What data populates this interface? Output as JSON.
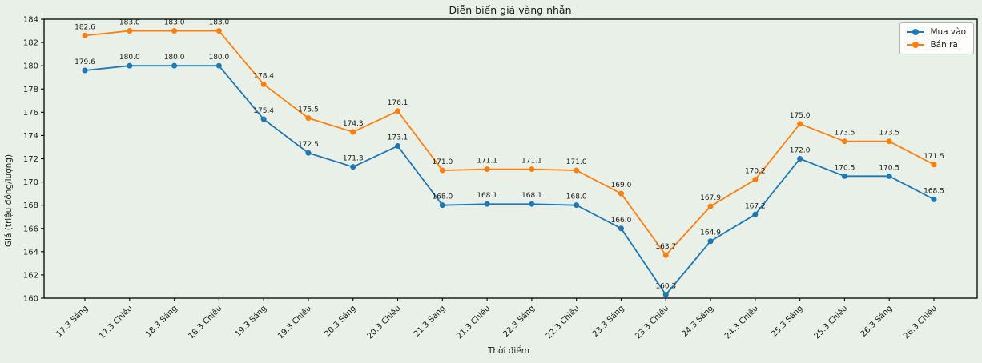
{
  "figure": {
    "background": "#e8f0e7",
    "spine_color": "#000000",
    "text_color": "#1a1a1a"
  },
  "chart_data": {
    "type": "line",
    "title": "Diễn biến giá vàng nhẫn",
    "xlabel": "Thời điểm",
    "ylabel": "Giá (triệu đồng/lượng)",
    "ylim": [
      160,
      184
    ],
    "ytick_step": 2,
    "grid": false,
    "legend_position": "upper right",
    "point_labels": true,
    "point_label_decimals": 1,
    "categories": [
      "17.3 Sáng",
      "17.3 Chiều",
      "18.3 Sáng",
      "18.3 Chiều",
      "19.3 Sáng",
      "19.3 Chiều",
      "20.3 Sáng",
      "20.3 Chiều",
      "21.3 Sáng",
      "21.3 Chiều",
      "22.3 Sáng",
      "22.3 Chiều",
      "23.3 Sáng",
      "23.3 Chiều",
      "24.3 Sáng",
      "24.3 Chiều",
      "25.3 Sáng",
      "25.3 Chiều",
      "26.3 Sáng",
      "26.3 Chiều"
    ],
    "series": [
      {
        "name": "Mua vào",
        "color": "#1f77b4",
        "marker": "circle",
        "values": [
          179.6,
          180.0,
          180.0,
          180.0,
          175.4,
          172.5,
          171.3,
          173.1,
          168.0,
          168.1,
          168.1,
          168.0,
          166.0,
          160.3,
          164.9,
          167.2,
          172.0,
          170.5,
          170.5,
          168.5
        ]
      },
      {
        "name": "Bán ra",
        "color": "#ff7f0e",
        "marker": "circle",
        "values": [
          182.6,
          183.0,
          183.0,
          183.0,
          178.4,
          175.5,
          174.3,
          176.1,
          171.0,
          171.1,
          171.1,
          171.0,
          169.0,
          163.7,
          167.9,
          170.2,
          175.0,
          173.5,
          173.5,
          171.5
        ]
      }
    ]
  }
}
